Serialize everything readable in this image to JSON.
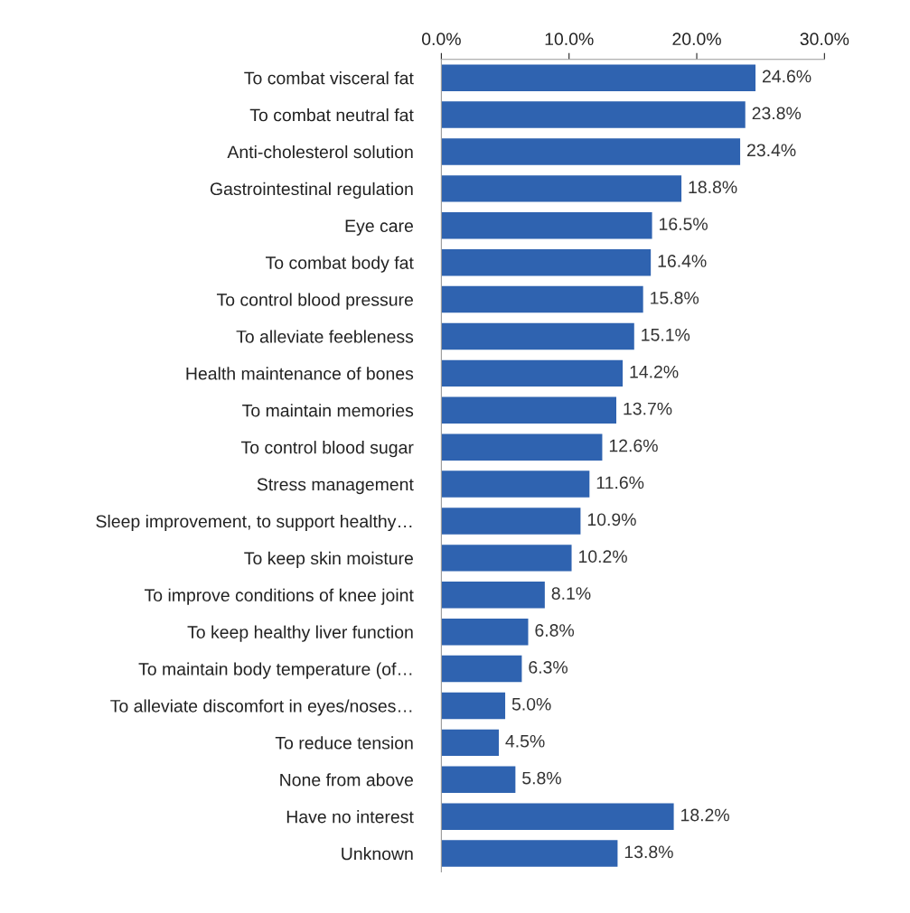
{
  "chart_data": {
    "type": "bar",
    "orientation": "horizontal",
    "categories": [
      "To combat visceral fat",
      "To combat neutral fat",
      "Anti-cholesterol solution",
      "Gastrointestinal regulation",
      "Eye care",
      "To combat body fat",
      "To control blood pressure",
      "To alleviate feebleness",
      "Health maintenance of bones",
      "To maintain memories",
      "To control blood sugar",
      "Stress management",
      "Sleep improvement, to support healthy…",
      "To keep skin moisture",
      "To improve conditions of knee joint",
      "To keep healthy liver function",
      "To maintain body temperature (of…",
      "To alleviate discomfort in eyes/noses…",
      "To reduce tension",
      "None from above",
      "Have no interest",
      "Unknown"
    ],
    "values": [
      24.6,
      23.8,
      23.4,
      18.8,
      16.5,
      16.4,
      15.8,
      15.1,
      14.2,
      13.7,
      12.6,
      11.6,
      10.9,
      10.2,
      8.1,
      6.8,
      6.3,
      5.0,
      4.5,
      5.8,
      18.2,
      13.8
    ],
    "value_labels": [
      "24.6%",
      "23.8%",
      "23.4%",
      "18.8%",
      "16.5%",
      "16.4%",
      "15.8%",
      "15.1%",
      "14.2%",
      "13.7%",
      "12.6%",
      "11.6%",
      "10.9%",
      "10.2%",
      "8.1%",
      "6.8%",
      "6.3%",
      "5.0%",
      "4.5%",
      "5.8%",
      "18.2%",
      "13.8%"
    ],
    "color": "#2f63b0",
    "xlim": [
      0,
      30
    ],
    "xticks": [
      {
        "value": 0,
        "label": "0.0%"
      },
      {
        "value": 10,
        "label": "10.0%"
      },
      {
        "value": 20,
        "label": "20.0%"
      },
      {
        "value": 30,
        "label": "30.0%"
      }
    ],
    "grid": false,
    "legend": false
  }
}
